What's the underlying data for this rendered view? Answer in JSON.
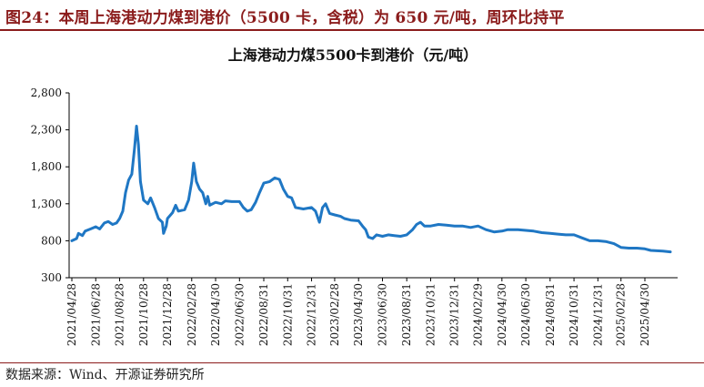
{
  "figure": {
    "title": "图24：本周上海港动力煤到港价（5500 卡，含税）为 650 元/吨，周环比持平",
    "source": "数据来源：Wind、开源证券研究所"
  },
  "colors": {
    "accent": "#8b1c1c",
    "line": "#1f77c4",
    "axis": "#000000"
  },
  "chart_data": {
    "type": "line",
    "title": "上海港动力煤5500卡到港价（元/吨）",
    "xlabel": "",
    "ylabel": "",
    "ylim": [
      300,
      2800
    ],
    "yticks": [
      300,
      800,
      1300,
      1800,
      2300,
      2800
    ],
    "ytick_labels": [
      "300",
      "800",
      "1,300",
      "1,800",
      "2,300",
      "2,800"
    ],
    "xticks": [
      "2021/04/28",
      "2021/06/28",
      "2021/08/28",
      "2021/10/28",
      "2021/12/28",
      "2022/02/28",
      "2022/04/30",
      "2022/06/30",
      "2022/08/31",
      "2022/10/31",
      "2022/12/31",
      "2023/02/28",
      "2023/04/30",
      "2023/06/30",
      "2023/08/31",
      "2023/10/31",
      "2023/12/31",
      "2024/02/29",
      "2024/04/30",
      "2024/06/30",
      "2024/08/31",
      "2024/10/31",
      "2024/12/31",
      "2025/02/28",
      "2025/04/30"
    ],
    "grid": false,
    "legend": "none",
    "series": [
      {
        "points": [
          [
            "2021/04/28",
            800
          ],
          [
            "2021/05/10",
            830
          ],
          [
            "2021/05/15",
            900
          ],
          [
            "2021/05/25",
            870
          ],
          [
            "2021/06/01",
            930
          ],
          [
            "2021/06/15",
            960
          ],
          [
            "2021/06/28",
            990
          ],
          [
            "2021/07/08",
            960
          ],
          [
            "2021/07/20",
            1040
          ],
          [
            "2021/07/30",
            1060
          ],
          [
            "2021/08/10",
            1020
          ],
          [
            "2021/08/20",
            1040
          ],
          [
            "2021/08/28",
            1100
          ],
          [
            "2021/09/05",
            1200
          ],
          [
            "2021/09/12",
            1450
          ],
          [
            "2021/09/20",
            1620
          ],
          [
            "2021/09/28",
            1700
          ],
          [
            "2021/10/05",
            2050
          ],
          [
            "2021/10/10",
            2350
          ],
          [
            "2021/10/15",
            2100
          ],
          [
            "2021/10/20",
            1600
          ],
          [
            "2021/10/28",
            1350
          ],
          [
            "2021/11/08",
            1300
          ],
          [
            "2021/11/15",
            1380
          ],
          [
            "2021/11/25",
            1250
          ],
          [
            "2021/12/05",
            1100
          ],
          [
            "2021/12/15",
            1050
          ],
          [
            "2021/12/18",
            900
          ],
          [
            "2021/12/25",
            1000
          ],
          [
            "2021/12/28",
            1100
          ],
          [
            "2022/01/10",
            1180
          ],
          [
            "2022/01/18",
            1280
          ],
          [
            "2022/01/25",
            1200
          ],
          [
            "2022/02/10",
            1220
          ],
          [
            "2022/02/20",
            1350
          ],
          [
            "2022/02/28",
            1600
          ],
          [
            "2022/03/05",
            1850
          ],
          [
            "2022/03/12",
            1600
          ],
          [
            "2022/03/20",
            1500
          ],
          [
            "2022/03/28",
            1450
          ],
          [
            "2022/04/05",
            1300
          ],
          [
            "2022/04/10",
            1400
          ],
          [
            "2022/04/15",
            1280
          ],
          [
            "2022/04/30",
            1320
          ],
          [
            "2022/05/15",
            1300
          ],
          [
            "2022/05/25",
            1340
          ],
          [
            "2022/06/10",
            1330
          ],
          [
            "2022/06/30",
            1330
          ],
          [
            "2022/07/10",
            1250
          ],
          [
            "2022/07/20",
            1200
          ],
          [
            "2022/07/30",
            1220
          ],
          [
            "2022/08/10",
            1320
          ],
          [
            "2022/08/20",
            1450
          ],
          [
            "2022/08/31",
            1580
          ],
          [
            "2022/09/15",
            1600
          ],
          [
            "2022/09/28",
            1650
          ],
          [
            "2022/10/10",
            1630
          ],
          [
            "2022/10/20",
            1500
          ],
          [
            "2022/10/31",
            1400
          ],
          [
            "2022/11/10",
            1380
          ],
          [
            "2022/11/20",
            1250
          ],
          [
            "2022/12/10",
            1230
          ],
          [
            "2022/12/31",
            1250
          ],
          [
            "2023/01/10",
            1200
          ],
          [
            "2023/01/20",
            1050
          ],
          [
            "2023/01/28",
            1250
          ],
          [
            "2023/02/05",
            1300
          ],
          [
            "2023/02/15",
            1170
          ],
          [
            "2023/02/28",
            1150
          ],
          [
            "2023/03/15",
            1130
          ],
          [
            "2023/03/25",
            1100
          ],
          [
            "2023/04/10",
            1080
          ],
          [
            "2023/04/30",
            1070
          ],
          [
            "2023/05/10",
            1000
          ],
          [
            "2023/05/18",
            950
          ],
          [
            "2023/05/25",
            850
          ],
          [
            "2023/06/05",
            830
          ],
          [
            "2023/06/15",
            880
          ],
          [
            "2023/06/30",
            860
          ],
          [
            "2023/07/15",
            880
          ],
          [
            "2023/07/30",
            870
          ],
          [
            "2023/08/15",
            860
          ],
          [
            "2023/08/31",
            880
          ],
          [
            "2023/09/15",
            950
          ],
          [
            "2023/09/25",
            1020
          ],
          [
            "2023/10/05",
            1050
          ],
          [
            "2023/10/15",
            1000
          ],
          [
            "2023/10/31",
            1000
          ],
          [
            "2023/11/20",
            1020
          ],
          [
            "2023/12/10",
            1010
          ],
          [
            "2023/12/31",
            1000
          ],
          [
            "2024/01/20",
            1000
          ],
          [
            "2024/02/10",
            980
          ],
          [
            "2024/02/29",
            1000
          ],
          [
            "2024/03/20",
            950
          ],
          [
            "2024/04/10",
            920
          ],
          [
            "2024/04/30",
            930
          ],
          [
            "2024/05/15",
            950
          ],
          [
            "2024/06/10",
            950
          ],
          [
            "2024/06/30",
            940
          ],
          [
            "2024/07/20",
            930
          ],
          [
            "2024/08/10",
            910
          ],
          [
            "2024/08/31",
            900
          ],
          [
            "2024/09/20",
            890
          ],
          [
            "2024/10/10",
            880
          ],
          [
            "2024/10/31",
            880
          ],
          [
            "2024/11/20",
            840
          ],
          [
            "2024/12/10",
            800
          ],
          [
            "2024/12/31",
            800
          ],
          [
            "2025/01/20",
            790
          ],
          [
            "2025/02/10",
            760
          ],
          [
            "2025/02/28",
            710
          ],
          [
            "2025/03/20",
            700
          ],
          [
            "2025/04/10",
            700
          ],
          [
            "2025/04/30",
            690
          ],
          [
            "2025/05/15",
            670
          ],
          [
            "2025/06/15",
            660
          ],
          [
            "2025/07/04",
            650
          ]
        ]
      }
    ]
  }
}
